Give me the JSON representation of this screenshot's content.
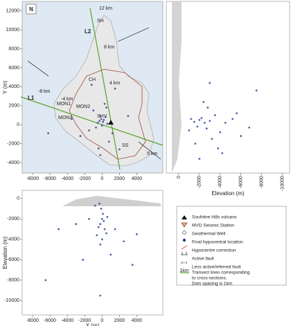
{
  "chart_data": [
    {
      "type": "scatter",
      "ylabel": "Y (m)",
      "color": "#2a3c8f",
      "xlim": [
        -9200,
        7000
      ],
      "ylim": [
        -5100,
        13000
      ],
      "xticks": [
        -8000,
        -6000,
        -4000,
        -2000,
        0,
        2000,
        4000
      ],
      "yticks": [
        -4000,
        -2000,
        0,
        2000,
        4000,
        6000,
        8000,
        10000,
        12000
      ],
      "x": [
        -300,
        -100,
        100,
        -500,
        200,
        0,
        -200,
        400,
        -700,
        600,
        -1000,
        1200,
        -1500,
        800,
        -400,
        300,
        -2500,
        2000,
        -3500,
        3000,
        1500,
        -6200,
        -200,
        500,
        -1200
      ],
      "values": [
        400,
        600,
        300,
        200,
        500,
        -100,
        900,
        800,
        -300,
        100,
        1500,
        -900,
        -600,
        -1800,
        -2500,
        2200,
        -1200,
        -2600,
        600,
        900,
        3800,
        -900,
        -3200,
        1800,
        4200
      ]
    },
    {
      "type": "scatter",
      "xlabel": "Elevation (m)",
      "color": "#2a3c8f",
      "xlim": [
        1200,
        -10700
      ],
      "ylim": [
        -5100,
        13000
      ],
      "xticks": [
        0,
        -2000,
        -4000,
        -6000,
        -8000,
        -10000
      ],
      "x": [
        -1500,
        -2000,
        -2500,
        -3000,
        -1800,
        -2200,
        -2700,
        -1200,
        -3500,
        -4000,
        -4500,
        -3200,
        -5200,
        -6000,
        -2800,
        -1000,
        -3800,
        -2400,
        -7500,
        -4200,
        -2000,
        -5600,
        -3000,
        -1600,
        -6800
      ],
      "values": [
        300,
        500,
        200,
        400,
        -200,
        700,
        -400,
        600,
        1000,
        -800,
        200,
        -1500,
        600,
        -1200,
        1800,
        -600,
        -2500,
        2400,
        3600,
        -3000,
        -3600,
        1200,
        4400,
        -2000,
        -300
      ]
    },
    {
      "type": "scatter",
      "xlabel": "X (m)",
      "ylabel": "Elevation (m)",
      "color": "#2a3c8f",
      "xlim": [
        -9200,
        7000
      ],
      "ylim": [
        -11400,
        800
      ],
      "xticks": [
        -8000,
        -6000,
        -4000,
        -2000,
        0,
        2000,
        4000
      ],
      "yticks": [
        -10000,
        -8000,
        -6000,
        -4000,
        -2000,
        0
      ],
      "x": [
        -300,
        -100,
        100,
        0,
        -200,
        300,
        -400,
        200,
        500,
        -600,
        0,
        -200,
        -1500,
        1500,
        -3000,
        2500,
        -5000,
        3500,
        -6500,
        1000,
        -800,
        600,
        -2200,
        4000,
        -200
      ],
      "values": [
        -500,
        -1000,
        -1500,
        -2000,
        -2500,
        -3000,
        -2800,
        -2200,
        -3400,
        -3600,
        -4000,
        -4500,
        -2000,
        -3000,
        -2500,
        -4200,
        -3000,
        -6500,
        -8000,
        -5500,
        -700,
        -1800,
        -6000,
        -3500,
        -9500
      ]
    }
  ],
  "map_labels": {
    "north": "N",
    "l1": "L1",
    "l2": "L2",
    "km12": "12 km",
    "km8": "8 km",
    "km4": "4 km",
    "kmm8": "-8 km",
    "kmm4": "-4 km",
    "km5": "5 km",
    "sh": "SH",
    "ch": "CH",
    "ss": "SS",
    "shv": "SHV",
    "mon1": "MON1",
    "mon2": "MON2",
    "mon3": "MON3"
  },
  "legend": {
    "items": [
      "Soufrière Hills volcano",
      "MVD Seismic Station",
      "Geothermal Well",
      "Final hypocentral location",
      "Hypocentre correction",
      "Active fault",
      "Less active/inferred fault"
    ],
    "transect": [
      "Transect lines corresponding",
      "to cross-sections.",
      "Dots spacing is 1km"
    ],
    "transect_icon": "1km"
  }
}
